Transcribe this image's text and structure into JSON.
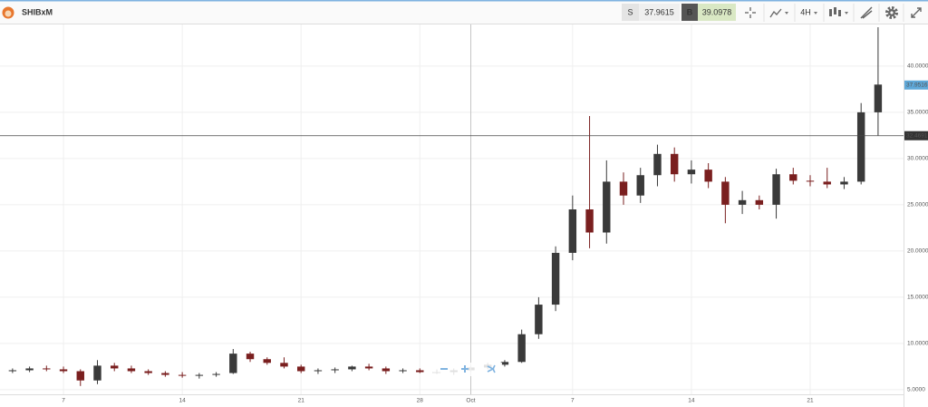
{
  "toolbar": {
    "symbol": "SHIBxM",
    "sell_label": "S",
    "sell_price": "37.9615",
    "buy_label": "B",
    "buy_price": "39.0978",
    "timeframe": "4H"
  },
  "chart_data": {
    "type": "candlestick",
    "up_color": "#3a3a3a",
    "down_color": "#7a1f1f",
    "grid": true,
    "x": [
      3,
      4,
      5,
      6,
      7,
      8,
      9,
      10,
      11,
      12,
      13,
      14,
      15,
      16,
      17,
      18,
      19,
      20,
      21,
      22,
      23,
      24,
      25,
      26,
      27,
      28,
      29,
      30,
      31,
      32,
      33,
      34,
      35,
      36,
      37,
      38,
      39,
      40,
      41,
      42,
      43,
      44,
      45,
      46,
      47,
      48,
      49,
      50,
      51,
      52,
      53,
      54
    ],
    "open": [
      7.0,
      7.1,
      7.3,
      7.2,
      7.0,
      6.0,
      7.6,
      7.3,
      7.0,
      6.8,
      6.6,
      6.5,
      6.6,
      6.8,
      8.9,
      8.3,
      7.9,
      7.5,
      7.0,
      7.1,
      7.2,
      7.5,
      7.3,
      7.0,
      7.1,
      6.9,
      6.9,
      7.1,
      7.4,
      7.7,
      8.0,
      11.0,
      14.2,
      19.8,
      24.5,
      22.0,
      27.5,
      26.0,
      28.2,
      30.5,
      28.3,
      28.8,
      27.5,
      25.0,
      25.5,
      25.0,
      28.3,
      27.6,
      27.5,
      27.2,
      27.5,
      35.0
    ],
    "high": [
      7.3,
      7.5,
      7.6,
      7.5,
      7.2,
      8.2,
      7.9,
      7.6,
      7.2,
      7.0,
      6.9,
      6.8,
      6.9,
      9.4,
      9.1,
      8.5,
      8.5,
      7.7,
      7.3,
      7.4,
      7.6,
      7.8,
      7.5,
      7.3,
      7.3,
      7.2,
      7.3,
      7.6,
      7.9,
      8.2,
      11.5,
      15.0,
      20.5,
      26.0,
      34.6,
      29.8,
      28.5,
      29.0,
      31.5,
      31.2,
      29.8,
      29.5,
      28.0,
      26.5,
      26.0,
      28.9,
      29.0,
      28.2,
      29.0,
      28.0,
      36.0,
      44.2
    ],
    "low": [
      6.8,
      6.9,
      7.0,
      6.8,
      5.4,
      5.6,
      7.0,
      6.8,
      6.6,
      6.4,
      6.3,
      6.2,
      6.4,
      6.7,
      8.0,
      7.7,
      7.3,
      6.8,
      6.7,
      6.8,
      7.0,
      7.1,
      6.7,
      6.8,
      6.8,
      6.7,
      6.6,
      6.9,
      7.2,
      7.5,
      7.9,
      10.5,
      13.5,
      19.0,
      20.3,
      20.8,
      25.0,
      25.2,
      27.0,
      27.5,
      27.3,
      26.8,
      23.0,
      24.0,
      24.5,
      23.5,
      27.2,
      27.0,
      26.8,
      26.7,
      27.2,
      32.5
    ],
    "close": [
      7.1,
      7.3,
      7.2,
      7.0,
      6.0,
      7.6,
      7.3,
      7.0,
      6.8,
      6.6,
      6.5,
      6.6,
      6.7,
      8.9,
      8.3,
      7.9,
      7.5,
      7.0,
      7.1,
      7.2,
      7.5,
      7.3,
      7.0,
      7.1,
      6.9,
      6.9,
      7.1,
      7.4,
      7.7,
      8.0,
      11.0,
      14.2,
      19.8,
      24.5,
      22.0,
      27.5,
      26.0,
      28.2,
      30.5,
      28.3,
      28.8,
      27.5,
      25.0,
      25.5,
      25.0,
      28.3,
      27.6,
      27.5,
      27.2,
      27.5,
      35.0,
      38.0
    ],
    "xlim": [
      2.26,
      55.5
    ],
    "xticks": [
      {
        "value": 6,
        "label": "7"
      },
      {
        "value": 13,
        "label": "14"
      },
      {
        "value": 20,
        "label": "21"
      },
      {
        "value": 27,
        "label": "28"
      },
      {
        "value": 30,
        "label": "Oct"
      },
      {
        "value": 36,
        "label": "7"
      },
      {
        "value": 43,
        "label": "14"
      },
      {
        "value": 50,
        "label": "21"
      }
    ],
    "ylim": [
      4.5,
      44.5
    ],
    "yticks": [
      {
        "value": 5,
        "label": "5.0000"
      },
      {
        "value": 10,
        "label": "10.0000"
      },
      {
        "value": 15,
        "label": "15.0000"
      },
      {
        "value": 20,
        "label": "20.0000"
      },
      {
        "value": 25,
        "label": "25.0000"
      },
      {
        "value": 30,
        "label": "30.0000"
      },
      {
        "value": 35,
        "label": "35.0000"
      },
      {
        "value": 40,
        "label": "40.0000"
      }
    ],
    "crosshair_price": 32.4691,
    "crosshair_x": 30,
    "last_price": 37.9516
  }
}
